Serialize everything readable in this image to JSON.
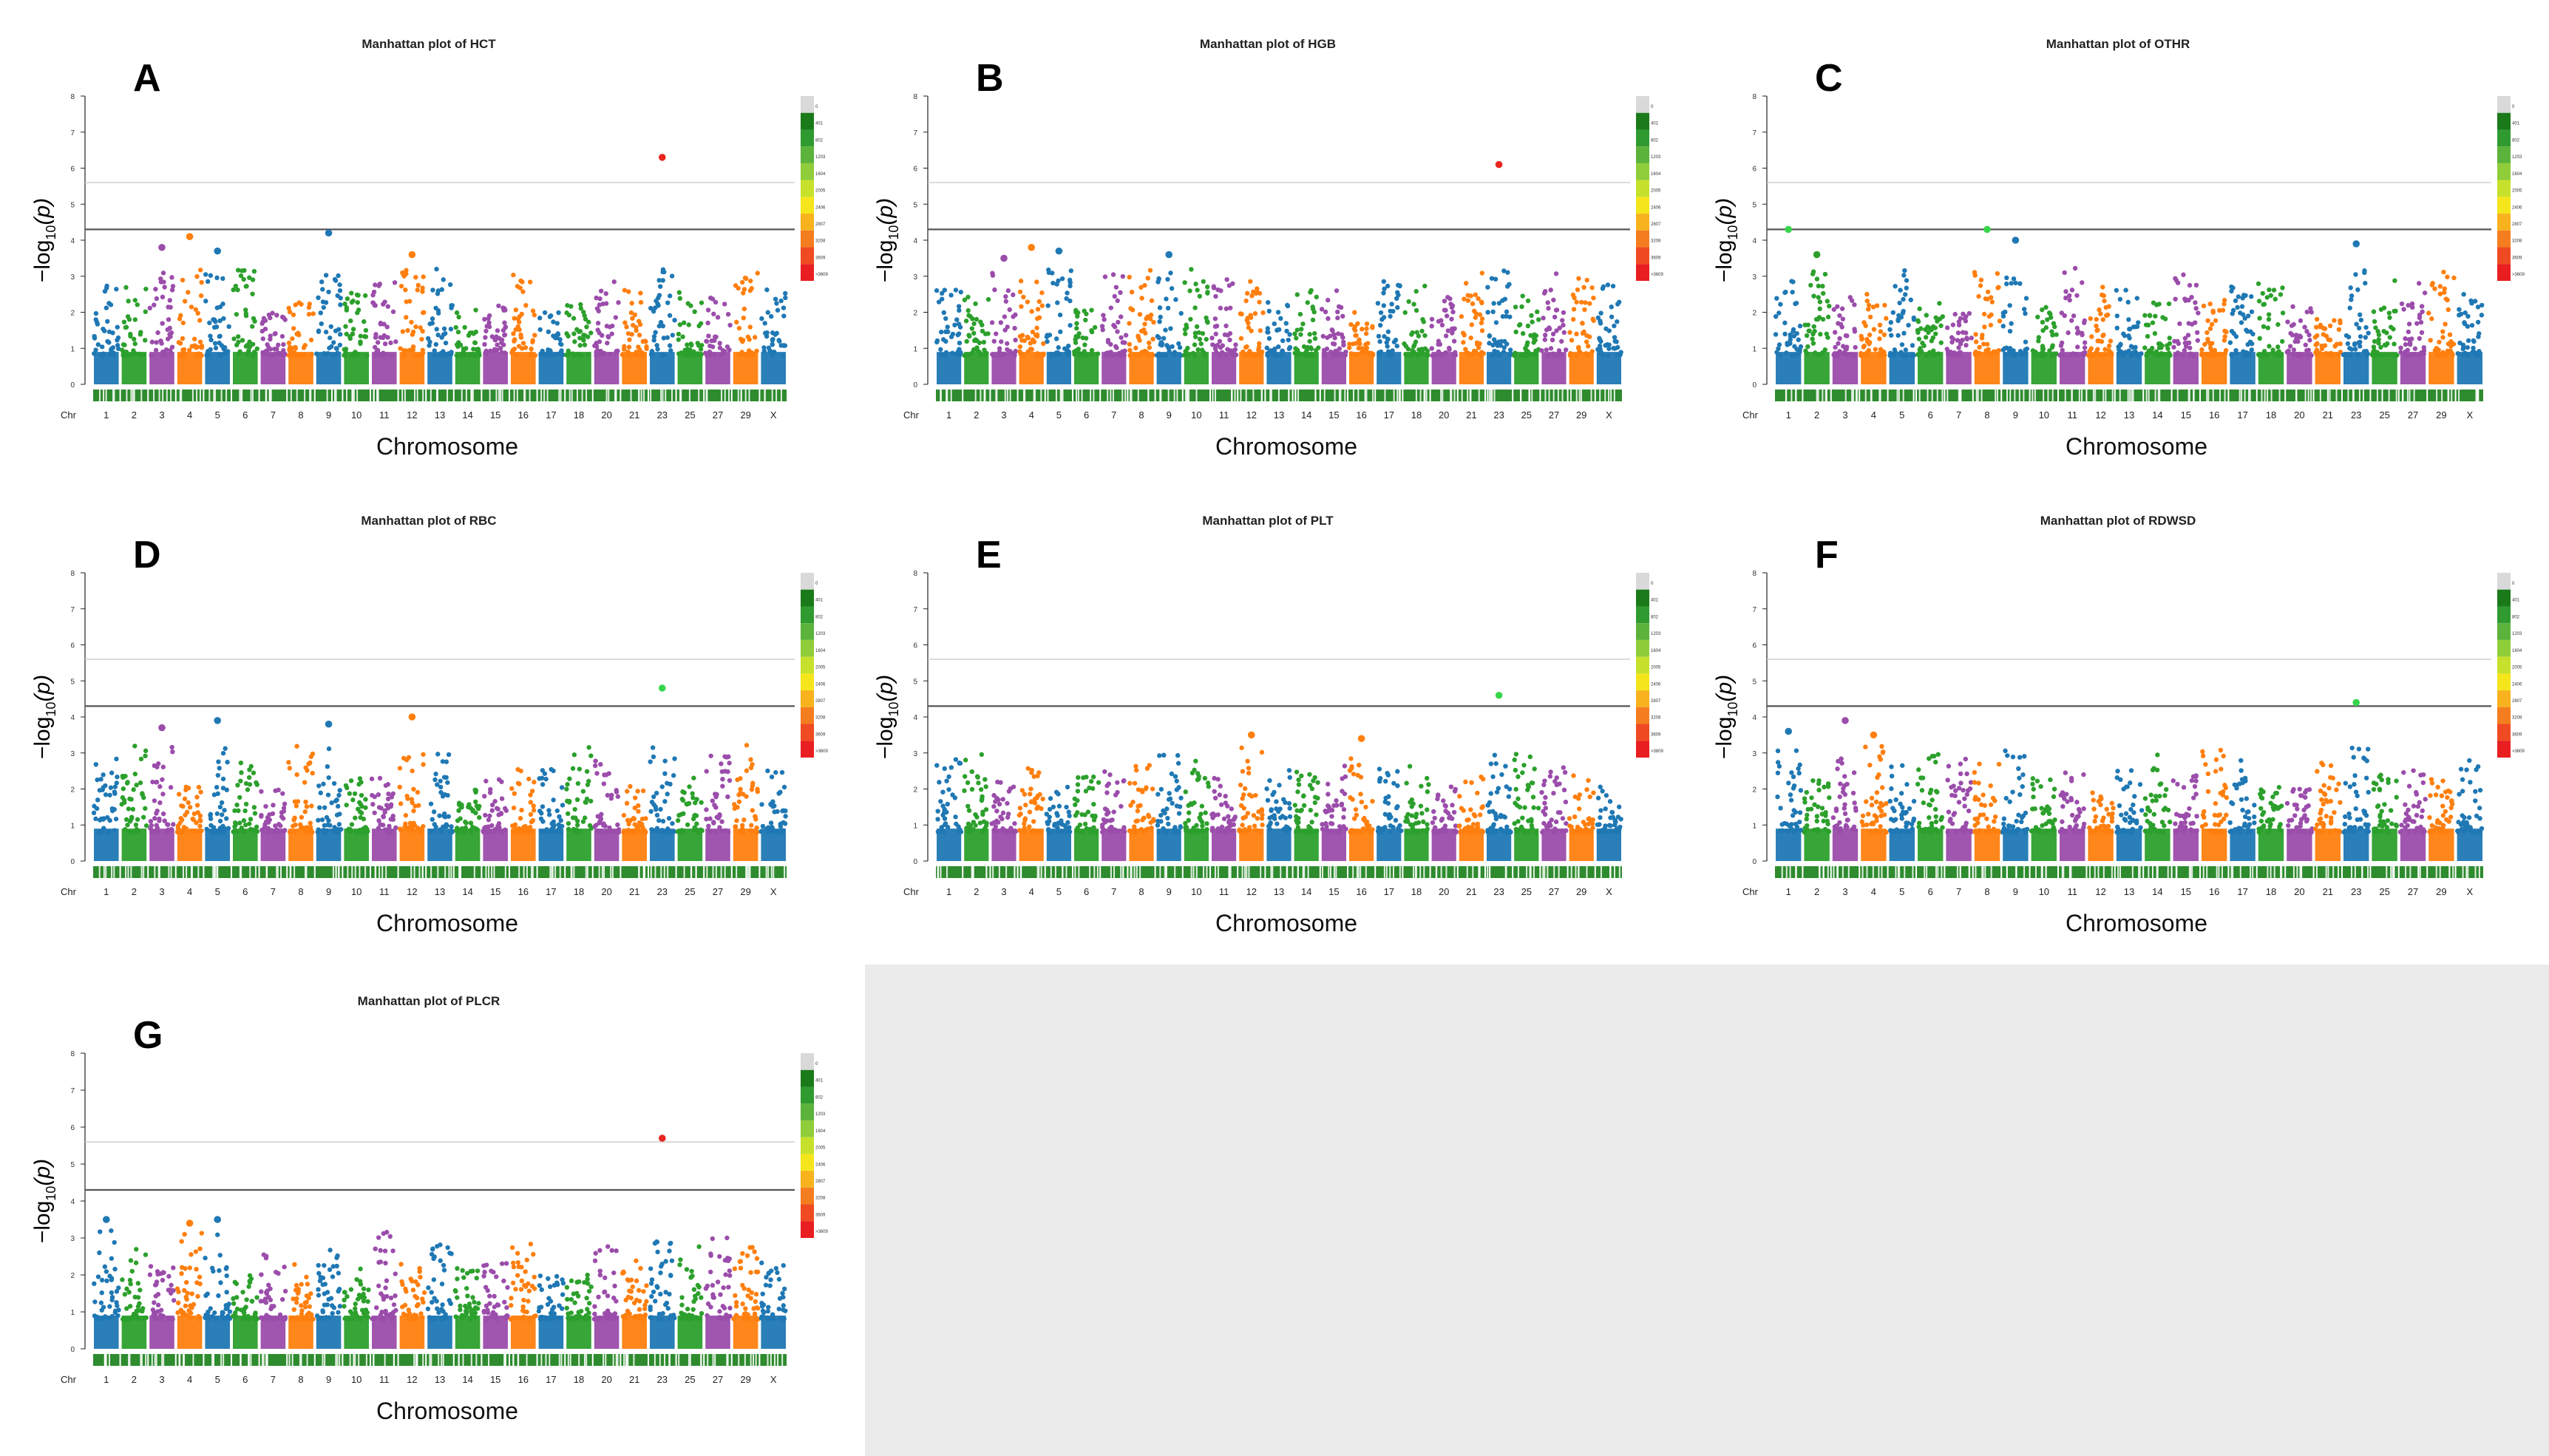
{
  "figure": {
    "xlabel": "Chromosome",
    "ylabel_main": "−log",
    "ylabel_sub": "10",
    "ylabel_paren": "(p)",
    "chr_prefix": "Chr",
    "colors": [
      "#1f78b4",
      "#2ca02c",
      "#9b4dab",
      "#ff7f0e"
    ],
    "threshold_color": "#555555",
    "suggestive_color": "#cfcfcf",
    "legend_levels": [
      "0",
      "401",
      "802",
      "1203",
      "1604",
      "2005",
      "2406",
      "2807",
      "3208",
      "3609",
      ">3609"
    ]
  },
  "chart_data": [
    {
      "type": "scatter",
      "panel": "A",
      "title": "Manhattan plot of HCT",
      "xlabel": "Chromosome",
      "ylabel": "-log10(p)",
      "ylim": [
        0,
        8
      ],
      "tick_labels": [
        "1",
        "2",
        "3",
        "4",
        "5",
        "6",
        "7",
        "8",
        "9",
        "10",
        "11",
        "12",
        "13",
        "14",
        "15",
        "16",
        "17",
        "18",
        "20",
        "21",
        "23",
        "25",
        "27",
        "29",
        "X"
      ],
      "threshold_line": 4.3,
      "suggestive_line": 5.6,
      "peaks": [
        {
          "chr": "3",
          "value": 3.8
        },
        {
          "chr": "4",
          "value": 4.1
        },
        {
          "chr": "5",
          "value": 3.7
        },
        {
          "chr": "9",
          "value": 4.2
        },
        {
          "chr": "12",
          "value": 3.6
        },
        {
          "chr": "23",
          "value": 6.3
        }
      ]
    },
    {
      "type": "scatter",
      "panel": "B",
      "title": "Manhattan plot of HGB",
      "xlabel": "Chromosome",
      "ylabel": "-log10(p)",
      "ylim": [
        0,
        8
      ],
      "tick_labels": [
        "1",
        "2",
        "3",
        "4",
        "5",
        "6",
        "7",
        "8",
        "9",
        "10",
        "11",
        "12",
        "13",
        "14",
        "15",
        "16",
        "17",
        "18",
        "20",
        "21",
        "23",
        "25",
        "27",
        "29",
        "X"
      ],
      "threshold_line": 4.3,
      "suggestive_line": 5.6,
      "peaks": [
        {
          "chr": "3",
          "value": 3.5
        },
        {
          "chr": "4",
          "value": 3.8
        },
        {
          "chr": "5",
          "value": 3.7
        },
        {
          "chr": "9",
          "value": 3.6
        },
        {
          "chr": "23",
          "value": 6.1
        }
      ]
    },
    {
      "type": "scatter",
      "panel": "C",
      "title": "Manhattan plot of OTHR",
      "xlabel": "Chromosome",
      "ylabel": "-log10(p)",
      "ylim": [
        0,
        8
      ],
      "tick_labels": [
        "1",
        "2",
        "3",
        "4",
        "5",
        "6",
        "7",
        "8",
        "9",
        "10",
        "11",
        "12",
        "13",
        "14",
        "15",
        "16",
        "17",
        "18",
        "20",
        "21",
        "23",
        "25",
        "27",
        "29",
        "X"
      ],
      "threshold_line": 4.3,
      "suggestive_line": 5.6,
      "peaks": [
        {
          "chr": "1",
          "value": 4.3
        },
        {
          "chr": "2",
          "value": 3.6
        },
        {
          "chr": "8",
          "value": 4.3
        },
        {
          "chr": "9",
          "value": 4.0
        },
        {
          "chr": "23",
          "value": 3.9
        }
      ]
    },
    {
      "type": "scatter",
      "panel": "D",
      "title": "Manhattan plot of RBC",
      "xlabel": "Chromosome",
      "ylabel": "-log10(p)",
      "ylim": [
        0,
        8
      ],
      "tick_labels": [
        "1",
        "2",
        "3",
        "4",
        "5",
        "6",
        "7",
        "8",
        "9",
        "10",
        "11",
        "12",
        "13",
        "14",
        "15",
        "16",
        "17",
        "18",
        "20",
        "21",
        "23",
        "25",
        "27",
        "29",
        "X"
      ],
      "threshold_line": 4.3,
      "suggestive_line": 5.6,
      "peaks": [
        {
          "chr": "3",
          "value": 3.7
        },
        {
          "chr": "5",
          "value": 3.9
        },
        {
          "chr": "9",
          "value": 3.8
        },
        {
          "chr": "12",
          "value": 4.0
        },
        {
          "chr": "23",
          "value": 4.8
        }
      ]
    },
    {
      "type": "scatter",
      "panel": "E",
      "title": "Manhattan plot of PLT",
      "xlabel": "Chromosome",
      "ylabel": "-log10(p)",
      "ylim": [
        0,
        8
      ],
      "tick_labels": [
        "1",
        "2",
        "3",
        "4",
        "5",
        "6",
        "7",
        "8",
        "9",
        "10",
        "11",
        "12",
        "13",
        "14",
        "15",
        "16",
        "17",
        "18",
        "20",
        "21",
        "23",
        "25",
        "27",
        "29",
        "X"
      ],
      "threshold_line": 4.3,
      "suggestive_line": 5.6,
      "peaks": [
        {
          "chr": "12",
          "value": 3.5
        },
        {
          "chr": "16",
          "value": 3.4
        },
        {
          "chr": "23",
          "value": 4.6
        }
      ]
    },
    {
      "type": "scatter",
      "panel": "F",
      "title": "Manhattan plot of RDWSD",
      "xlabel": "Chromosome",
      "ylabel": "-log10(p)",
      "ylim": [
        0,
        8
      ],
      "tick_labels": [
        "1",
        "2",
        "3",
        "4",
        "5",
        "6",
        "7",
        "8",
        "9",
        "10",
        "11",
        "12",
        "13",
        "14",
        "15",
        "16",
        "17",
        "18",
        "20",
        "21",
        "23",
        "25",
        "27",
        "29",
        "X"
      ],
      "threshold_line": 4.3,
      "suggestive_line": 5.6,
      "peaks": [
        {
          "chr": "1",
          "value": 3.6
        },
        {
          "chr": "3",
          "value": 3.9
        },
        {
          "chr": "4",
          "value": 3.5
        },
        {
          "chr": "23",
          "value": 4.4
        }
      ]
    },
    {
      "type": "scatter",
      "panel": "G",
      "title": "Manhattan plot of PLCR",
      "xlabel": "Chromosome",
      "ylabel": "-log10(p)",
      "ylim": [
        0,
        8
      ],
      "tick_labels": [
        "1",
        "2",
        "3",
        "4",
        "5",
        "6",
        "7",
        "8",
        "9",
        "10",
        "11",
        "12",
        "13",
        "14",
        "15",
        "16",
        "17",
        "18",
        "20",
        "21",
        "23",
        "25",
        "27",
        "29",
        "X"
      ],
      "threshold_line": 4.3,
      "suggestive_line": 5.6,
      "peaks": [
        {
          "chr": "1",
          "value": 3.5
        },
        {
          "chr": "4",
          "value": 3.4
        },
        {
          "chr": "5",
          "value": 3.5
        },
        {
          "chr": "23",
          "value": 5.7
        }
      ]
    }
  ]
}
